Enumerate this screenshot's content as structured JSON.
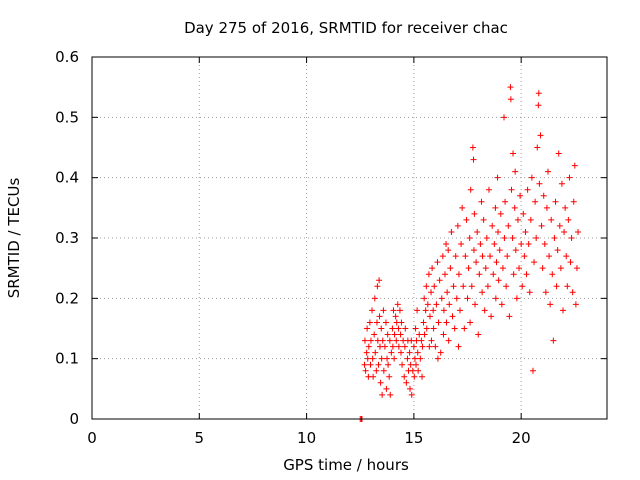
{
  "chart_data": {
    "type": "scatter",
    "title": "Day 275 of 2016, SRMTID for receiver chac",
    "xlabel": "GPS time / hours",
    "ylabel": "SRMTID / TECUs",
    "xlim": [
      0,
      24
    ],
    "ylim": [
      0,
      0.6
    ],
    "xticks": [
      0,
      5,
      10,
      15,
      20
    ],
    "xtick_labels": [
      "0",
      "5",
      "10",
      "15",
      "20"
    ],
    "yticks": [
      0,
      0.1,
      0.2,
      0.3,
      0.4,
      0.5,
      0.6
    ],
    "ytick_labels": [
      "0",
      "0.1",
      "0.2",
      "0.3",
      "0.4",
      "0.5",
      "0.6"
    ],
    "grid": true,
    "marker": "plus",
    "color": "#ff0000",
    "series": [
      {
        "name": "SRMTID",
        "points": [
          [
            12.5,
            0.0
          ],
          [
            12.55,
            0.0
          ],
          [
            12.58,
            0.0
          ],
          [
            12.7,
            0.09
          ],
          [
            12.72,
            0.13
          ],
          [
            12.75,
            0.08
          ],
          [
            12.8,
            0.11
          ],
          [
            12.82,
            0.15
          ],
          [
            12.85,
            0.1
          ],
          [
            12.88,
            0.07
          ],
          [
            12.9,
            0.12
          ],
          [
            12.95,
            0.16
          ],
          [
            12.98,
            0.09
          ],
          [
            13.0,
            0.13
          ],
          [
            13.05,
            0.18
          ],
          [
            13.08,
            0.1
          ],
          [
            13.1,
            0.07
          ],
          [
            13.15,
            0.14
          ],
          [
            13.18,
            0.2
          ],
          [
            13.2,
            0.11
          ],
          [
            13.25,
            0.08
          ],
          [
            13.28,
            0.16
          ],
          [
            13.3,
            0.22
          ],
          [
            13.32,
            0.13
          ],
          [
            13.35,
            0.09
          ],
          [
            13.38,
            0.23
          ],
          [
            13.4,
            0.17
          ],
          [
            13.42,
            0.12
          ],
          [
            13.45,
            0.06
          ],
          [
            13.48,
            0.15
          ],
          [
            13.5,
            0.1
          ],
          [
            13.52,
            0.04
          ],
          [
            13.55,
            0.13
          ],
          [
            13.58,
            0.18
          ],
          [
            13.6,
            0.08
          ],
          [
            13.65,
            0.12
          ],
          [
            13.7,
            0.16
          ],
          [
            13.72,
            0.05
          ],
          [
            13.75,
            0.1
          ],
          [
            13.78,
            0.14
          ],
          [
            13.8,
            0.09
          ],
          [
            13.85,
            0.07
          ],
          [
            13.88,
            0.13
          ],
          [
            13.9,
            0.04
          ],
          [
            13.95,
            0.11
          ],
          [
            14.0,
            0.15
          ],
          [
            14.02,
            0.12
          ],
          [
            14.05,
            0.18
          ],
          [
            14.08,
            0.1
          ],
          [
            14.1,
            0.14
          ],
          [
            14.15,
            0.17
          ],
          [
            14.18,
            0.13
          ],
          [
            14.2,
            0.16
          ],
          [
            14.25,
            0.19
          ],
          [
            14.28,
            0.15
          ],
          [
            14.3,
            0.12
          ],
          [
            14.35,
            0.18
          ],
          [
            14.38,
            0.14
          ],
          [
            14.4,
            0.11
          ],
          [
            14.42,
            0.16
          ],
          [
            14.45,
            0.09
          ],
          [
            14.5,
            0.13
          ],
          [
            14.55,
            0.07
          ],
          [
            14.58,
            0.12
          ],
          [
            14.6,
            0.15
          ],
          [
            14.65,
            0.06
          ],
          [
            14.7,
            0.1
          ],
          [
            14.72,
            0.13
          ],
          [
            14.75,
            0.08
          ],
          [
            14.8,
            0.11
          ],
          [
            14.82,
            0.05
          ],
          [
            14.85,
            0.09
          ],
          [
            14.88,
            0.13
          ],
          [
            14.9,
            0.04
          ],
          [
            14.95,
            0.08
          ],
          [
            15.0,
            0.12
          ],
          [
            15.02,
            0.07
          ],
          [
            15.05,
            0.1
          ],
          [
            15.08,
            0.15
          ],
          [
            15.1,
            0.09
          ],
          [
            15.12,
            0.13
          ],
          [
            15.15,
            0.18
          ],
          [
            15.18,
            0.11
          ],
          [
            15.2,
            0.08
          ],
          [
            15.25,
            0.14
          ],
          [
            15.3,
            0.1
          ],
          [
            15.35,
            0.13
          ],
          [
            15.38,
            0.07
          ],
          [
            15.4,
            0.12
          ],
          [
            15.45,
            0.16
          ],
          [
            15.48,
            0.2
          ],
          [
            15.5,
            0.14
          ],
          [
            15.55,
            0.18
          ],
          [
            15.58,
            0.22
          ],
          [
            15.6,
            0.15
          ],
          [
            15.65,
            0.19
          ],
          [
            15.7,
            0.24
          ],
          [
            15.72,
            0.12
          ],
          [
            15.75,
            0.17
          ],
          [
            15.8,
            0.21
          ],
          [
            15.82,
            0.13
          ],
          [
            15.85,
            0.25
          ],
          [
            15.9,
            0.18
          ],
          [
            15.92,
            0.15
          ],
          [
            15.95,
            0.22
          ],
          [
            16.0,
            0.12
          ],
          [
            16.05,
            0.19
          ],
          [
            16.1,
            0.26
          ],
          [
            16.12,
            0.1
          ],
          [
            16.15,
            0.16
          ],
          [
            16.2,
            0.23
          ],
          [
            16.25,
            0.11
          ],
          [
            16.3,
            0.2
          ],
          [
            16.35,
            0.27
          ],
          [
            16.38,
            0.14
          ],
          [
            16.4,
            0.18
          ],
          [
            16.45,
            0.24
          ],
          [
            16.5,
            0.29
          ],
          [
            16.52,
            0.16
          ],
          [
            16.55,
            0.21
          ],
          [
            16.6,
            0.28
          ],
          [
            16.62,
            0.13
          ],
          [
            16.65,
            0.19
          ],
          [
            16.7,
            0.25
          ],
          [
            16.75,
            0.31
          ],
          [
            16.8,
            0.17
          ],
          [
            16.85,
            0.22
          ],
          [
            16.9,
            0.15
          ],
          [
            16.95,
            0.27
          ],
          [
            17.0,
            0.2
          ],
          [
            17.05,
            0.32
          ],
          [
            17.08,
            0.12
          ],
          [
            17.1,
            0.24
          ],
          [
            17.15,
            0.18
          ],
          [
            17.2,
            0.29
          ],
          [
            17.25,
            0.35
          ],
          [
            17.3,
            0.22
          ],
          [
            17.35,
            0.15
          ],
          [
            17.4,
            0.27
          ],
          [
            17.45,
            0.33
          ],
          [
            17.5,
            0.2
          ],
          [
            17.55,
            0.25
          ],
          [
            17.6,
            0.3
          ],
          [
            17.62,
            0.16
          ],
          [
            17.65,
            0.38
          ],
          [
            17.7,
            0.22
          ],
          [
            17.75,
            0.45
          ],
          [
            17.78,
            0.43
          ],
          [
            17.8,
            0.28
          ],
          [
            17.82,
            0.34
          ],
          [
            17.85,
            0.19
          ],
          [
            17.9,
            0.26
          ],
          [
            17.95,
            0.31
          ],
          [
            18.0,
            0.14
          ],
          [
            18.05,
            0.24
          ],
          [
            18.1,
            0.29
          ],
          [
            18.15,
            0.36
          ],
          [
            18.18,
            0.21
          ],
          [
            18.2,
            0.27
          ],
          [
            18.25,
            0.33
          ],
          [
            18.3,
            0.18
          ],
          [
            18.35,
            0.25
          ],
          [
            18.4,
            0.3
          ],
          [
            18.45,
            0.22
          ],
          [
            18.5,
            0.38
          ],
          [
            18.55,
            0.27
          ],
          [
            18.6,
            0.17
          ],
          [
            18.65,
            0.32
          ],
          [
            18.7,
            0.24
          ],
          [
            18.75,
            0.29
          ],
          [
            18.8,
            0.35
          ],
          [
            18.82,
            0.2
          ],
          [
            18.85,
            0.26
          ],
          [
            18.9,
            0.4
          ],
          [
            18.92,
            0.31
          ],
          [
            18.95,
            0.23
          ],
          [
            19.0,
            0.28
          ],
          [
            19.05,
            0.34
          ],
          [
            19.1,
            0.19
          ],
          [
            19.15,
            0.25
          ],
          [
            19.2,
            0.5
          ],
          [
            19.22,
            0.3
          ],
          [
            19.25,
            0.36
          ],
          [
            19.3,
            0.22
          ],
          [
            19.35,
            0.27
          ],
          [
            19.4,
            0.32
          ],
          [
            19.45,
            0.17
          ],
          [
            19.5,
            0.55
          ],
          [
            19.52,
            0.53
          ],
          [
            19.55,
            0.38
          ],
          [
            19.6,
            0.3
          ],
          [
            19.62,
            0.44
          ],
          [
            19.65,
            0.24
          ],
          [
            19.7,
            0.35
          ],
          [
            19.72,
            0.41
          ],
          [
            19.75,
            0.28
          ],
          [
            19.8,
            0.2
          ],
          [
            19.85,
            0.33
          ],
          [
            19.9,
            0.25
          ],
          [
            19.95,
            0.37
          ],
          [
            20.0,
            0.29
          ],
          [
            20.05,
            0.22
          ],
          [
            20.1,
            0.34
          ],
          [
            20.15,
            0.27
          ],
          [
            20.2,
            0.31
          ],
          [
            20.25,
            0.24
          ],
          [
            20.3,
            0.38
          ],
          [
            20.35,
            0.29
          ],
          [
            20.4,
            0.21
          ],
          [
            20.45,
            0.33
          ],
          [
            20.5,
            0.4
          ],
          [
            20.55,
            0.08
          ],
          [
            20.6,
            0.26
          ],
          [
            20.65,
            0.36
          ],
          [
            20.7,
            0.3
          ],
          [
            20.75,
            0.45
          ],
          [
            20.8,
            0.52
          ],
          [
            20.82,
            0.54
          ],
          [
            20.85,
            0.39
          ],
          [
            20.9,
            0.47
          ],
          [
            20.95,
            0.32
          ],
          [
            21.0,
            0.25
          ],
          [
            21.05,
            0.37
          ],
          [
            21.1,
            0.29
          ],
          [
            21.15,
            0.21
          ],
          [
            21.2,
            0.35
          ],
          [
            21.25,
            0.41
          ],
          [
            21.3,
            0.27
          ],
          [
            21.35,
            0.19
          ],
          [
            21.4,
            0.33
          ],
          [
            21.45,
            0.24
          ],
          [
            21.5,
            0.13
          ],
          [
            21.55,
            0.3
          ],
          [
            21.6,
            0.36
          ],
          [
            21.65,
            0.22
          ],
          [
            21.7,
            0.28
          ],
          [
            21.75,
            0.44
          ],
          [
            21.8,
            0.32
          ],
          [
            21.85,
            0.25
          ],
          [
            21.9,
            0.39
          ],
          [
            21.95,
            0.18
          ],
          [
            22.0,
            0.31
          ],
          [
            22.05,
            0.35
          ],
          [
            22.1,
            0.27
          ],
          [
            22.15,
            0.22
          ],
          [
            22.2,
            0.33
          ],
          [
            22.25,
            0.4
          ],
          [
            22.3,
            0.26
          ],
          [
            22.35,
            0.3
          ],
          [
            22.4,
            0.21
          ],
          [
            22.45,
            0.36
          ],
          [
            22.5,
            0.42
          ],
          [
            22.55,
            0.19
          ],
          [
            22.6,
            0.25
          ],
          [
            22.65,
            0.31
          ]
        ]
      }
    ]
  }
}
